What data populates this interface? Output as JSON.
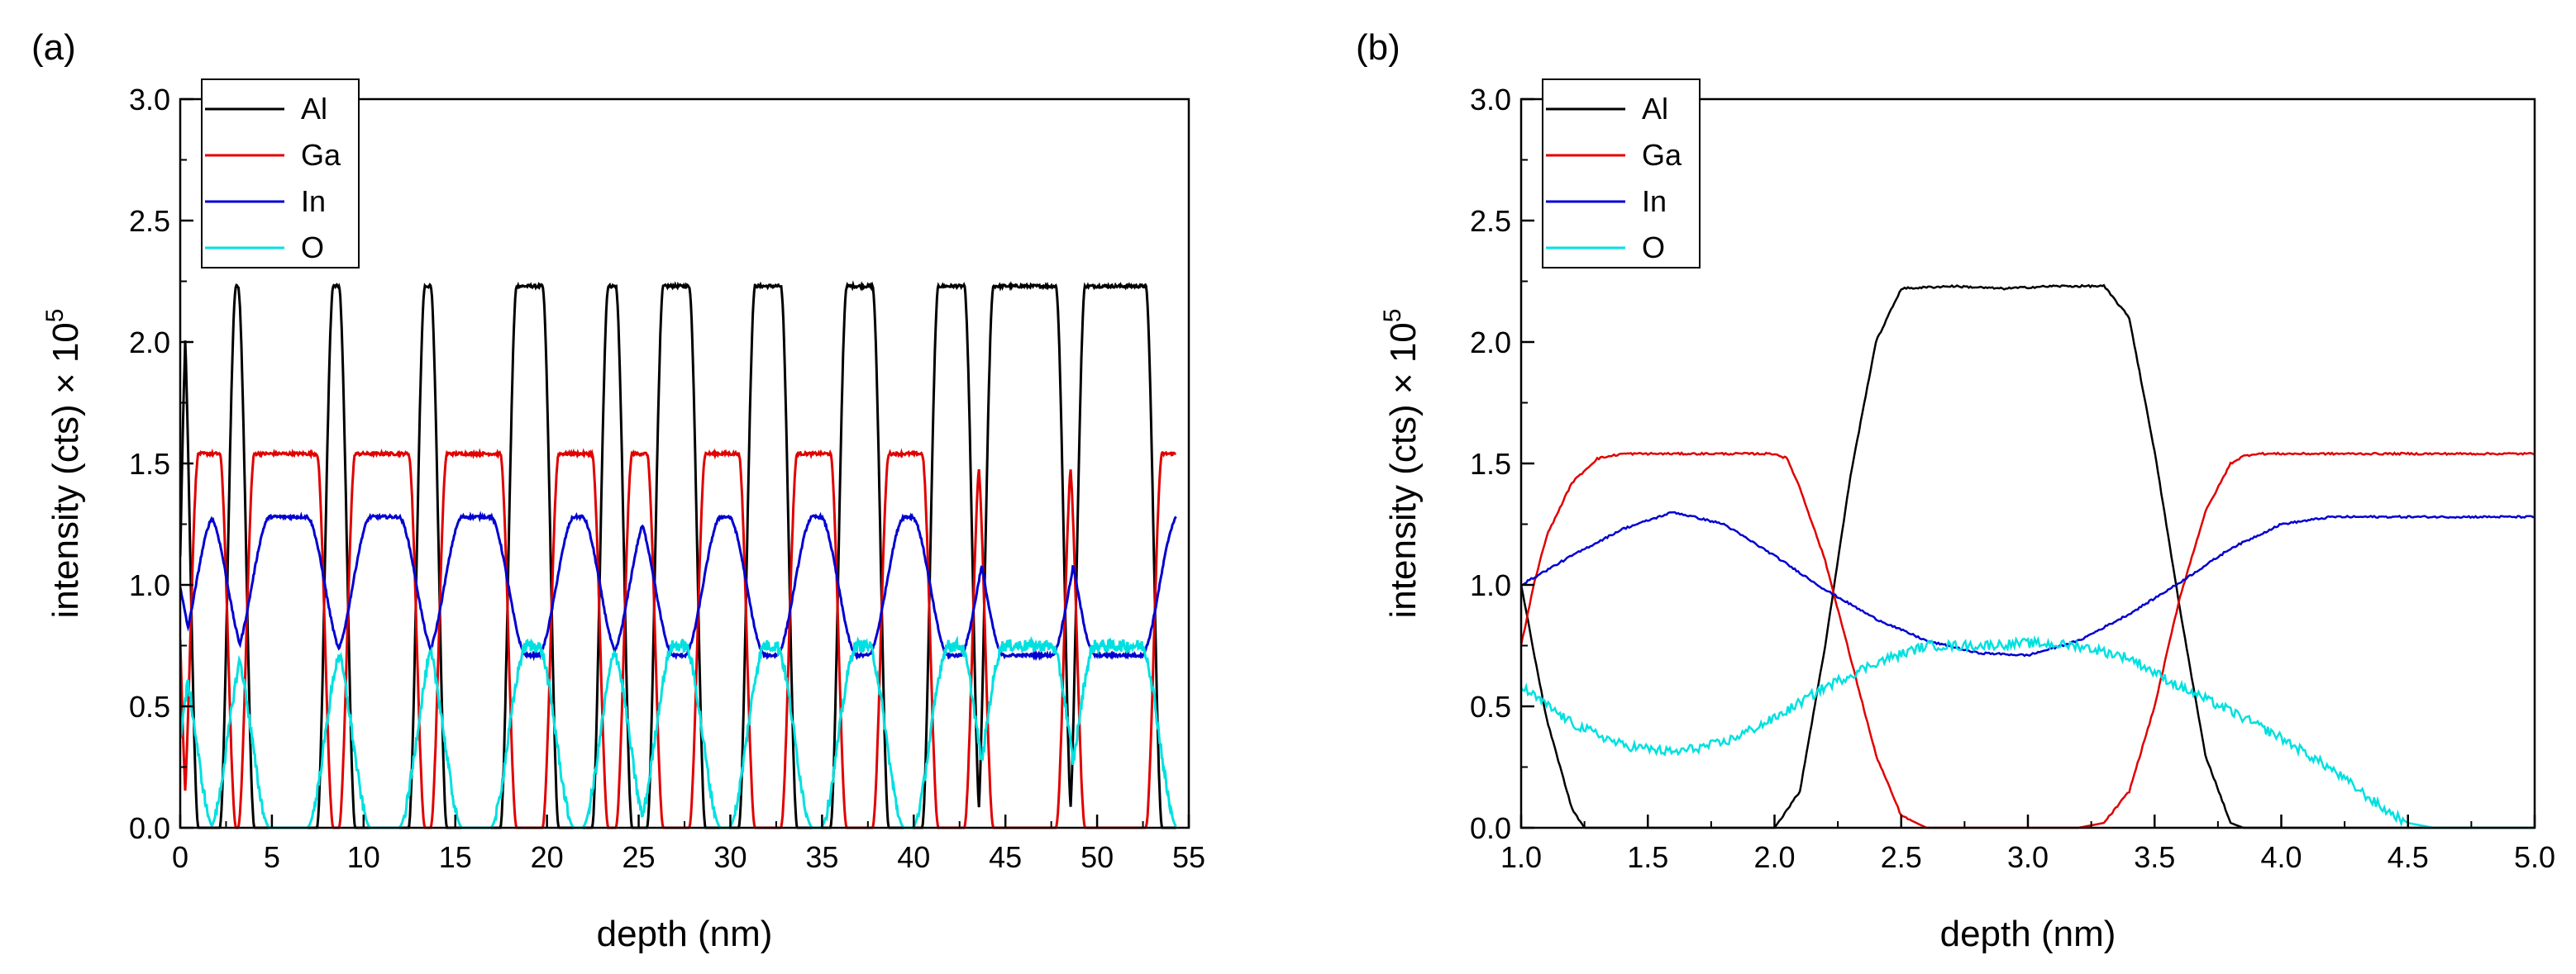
{
  "chart_data": [
    {
      "type": "line",
      "panel_label": "(a)",
      "xlabel": "depth (nm)",
      "ylabel": "intensity (cts) × 10",
      "ylabel_exponent": "5",
      "xlim": [
        0,
        55
      ],
      "ylim": [
        0,
        3.0
      ],
      "xticks": [
        0,
        5,
        10,
        15,
        20,
        25,
        30,
        35,
        40,
        45,
        50,
        55
      ],
      "xtick_labels": [
        "0",
        "5",
        "10",
        "15",
        "20",
        "25",
        "30",
        "35",
        "40",
        "45",
        "50",
        "55"
      ],
      "yticks": [
        0,
        0.5,
        1.0,
        1.5,
        2.0,
        2.5,
        3.0
      ],
      "ytick_labels": [
        "0.0",
        "0.5",
        "1.0",
        "1.5",
        "2.0",
        "2.5",
        "3.0"
      ],
      "legend": "top-left",
      "barrier_intervals_nm": [
        [
          0,
          0.55
        ],
        [
          2.6,
          3.6
        ],
        [
          7.9,
          9.1
        ],
        [
          12.9,
          14.1
        ],
        [
          17.9,
          20.2
        ],
        [
          22.9,
          24.2
        ],
        [
          25.9,
          28.2
        ],
        [
          30.9,
          33.2
        ],
        [
          35.9,
          38.2
        ],
        [
          40.9,
          43.2
        ],
        [
          43.9,
          48.2
        ],
        [
          48.9,
          53.1
        ]
      ],
      "series": [
        {
          "name": "Al",
          "color": "#000000",
          "level_barrier": 2.23,
          "level_well": 0.0
        },
        {
          "name": "Ga",
          "color": "#e00000",
          "level_barrier": 0.0,
          "level_well": 1.54
        },
        {
          "name": "In",
          "color": "#0000d0",
          "level_barrier": 0.71,
          "level_well": 1.28
        },
        {
          "name": "O",
          "color": "#00e0e0",
          "level_barrier": 0.75,
          "level_well": 0.0
        }
      ]
    },
    {
      "type": "line",
      "panel_label": "(b)",
      "xlabel": "depth (nm)",
      "ylabel": "intensity (cts) × 10",
      "ylabel_exponent": "5",
      "xlim": [
        1.0,
        5.0
      ],
      "ylim": [
        0,
        3.0
      ],
      "xticks": [
        1.0,
        1.5,
        2.0,
        2.5,
        3.0,
        3.5,
        4.0,
        4.5,
        5.0
      ],
      "xtick_labels": [
        "1.0",
        "1.5",
        "2.0",
        "2.5",
        "3.0",
        "3.5",
        "4.0",
        "4.5",
        "5.0"
      ],
      "yticks": [
        0,
        0.5,
        1.0,
        1.5,
        2.0,
        2.5,
        3.0
      ],
      "ytick_labels": [
        "0.0",
        "0.5",
        "1.0",
        "1.5",
        "2.0",
        "2.5",
        "3.0"
      ],
      "legend": "top-left",
      "series": [
        {
          "name": "Al",
          "color": "#000000",
          "x": [
            1.0,
            1.1,
            1.2,
            1.25,
            1.3,
            2.0,
            2.1,
            2.2,
            2.3,
            2.4,
            2.5,
            2.7,
            2.9,
            3.1,
            3.3,
            3.4,
            3.5,
            3.6,
            3.7,
            3.8,
            3.85,
            5.0
          ],
          "y": [
            1.0,
            0.45,
            0.08,
            0.0,
            0.0,
            0.0,
            0.15,
            0.75,
            1.45,
            2.0,
            2.22,
            2.23,
            2.22,
            2.23,
            2.23,
            2.1,
            1.55,
            0.9,
            0.3,
            0.02,
            0.0,
            0.0
          ]
        },
        {
          "name": "Ga",
          "color": "#e00000",
          "x": [
            1.0,
            1.05,
            1.1,
            1.2,
            1.3,
            1.4,
            1.5,
            2.0,
            2.05,
            2.1,
            2.2,
            2.3,
            2.4,
            2.5,
            2.6,
            3.2,
            3.3,
            3.4,
            3.5,
            3.6,
            3.7,
            3.8,
            3.85,
            3.9,
            4.0,
            5.0
          ],
          "y": [
            0.75,
            1.0,
            1.2,
            1.42,
            1.52,
            1.54,
            1.54,
            1.54,
            1.52,
            1.4,
            1.1,
            0.7,
            0.3,
            0.05,
            0.0,
            0.0,
            0.02,
            0.15,
            0.5,
            0.95,
            1.3,
            1.5,
            1.53,
            1.54,
            1.54,
            1.54
          ]
        },
        {
          "name": "In",
          "color": "#0000d0",
          "x": [
            1.0,
            1.2,
            1.4,
            1.6,
            1.8,
            2.0,
            2.2,
            2.4,
            2.6,
            2.8,
            3.0,
            3.2,
            3.4,
            3.6,
            3.8,
            4.0,
            4.2,
            4.5,
            5.0
          ],
          "y": [
            1.0,
            1.12,
            1.23,
            1.3,
            1.25,
            1.12,
            0.98,
            0.86,
            0.77,
            0.72,
            0.71,
            0.77,
            0.88,
            1.01,
            1.15,
            1.25,
            1.28,
            1.28,
            1.28
          ]
        },
        {
          "name": "O",
          "color": "#00e0e0",
          "x": [
            1.0,
            1.2,
            1.4,
            1.6,
            1.8,
            2.0,
            2.2,
            2.4,
            2.6,
            2.8,
            3.0,
            3.2,
            3.4,
            3.6,
            3.8,
            4.0,
            4.2,
            4.4,
            4.5,
            4.6,
            5.0
          ],
          "y": [
            0.58,
            0.43,
            0.34,
            0.31,
            0.35,
            0.45,
            0.58,
            0.68,
            0.75,
            0.75,
            0.76,
            0.75,
            0.7,
            0.58,
            0.48,
            0.37,
            0.24,
            0.08,
            0.02,
            0.0,
            0.0
          ]
        }
      ]
    }
  ]
}
